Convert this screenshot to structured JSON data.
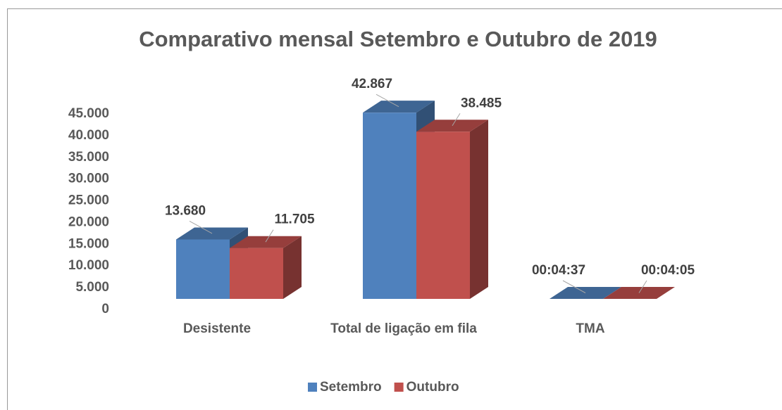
{
  "chart_data": {
    "type": "bar3d",
    "title": "Comparativo mensal Setembro e Outubro de 2019",
    "categories": [
      "Desistente",
      "Total de ligação em fila",
      "TMA"
    ],
    "series": [
      {
        "name": "Setembro",
        "color": "#4f81bd",
        "values": [
          13680,
          42867,
          0.003206
        ],
        "value_labels": [
          "13.680",
          "42.867",
          "00:04:37"
        ]
      },
      {
        "name": "Outubro",
        "color": "#c0504d",
        "values": [
          11705,
          38485,
          0.002836
        ],
        "value_labels": [
          "11.705",
          "38.485",
          "00:04:05"
        ]
      }
    ],
    "ylim": [
      0,
      45000
    ],
    "yticks": [
      0,
      {
        "value": 5000,
        "label": "5.000"
      },
      {
        "value": 10000,
        "label": "10.000"
      },
      {
        "value": 15000,
        "label": "15.000"
      },
      {
        "value": 20000,
        "label": "20.000"
      },
      {
        "value": 25000,
        "label": "25.000"
      },
      {
        "value": 30000,
        "label": "30.000"
      },
      {
        "value": 35000,
        "label": "35.000"
      },
      {
        "value": 40000,
        "label": "40.000"
      },
      {
        "value": 45000,
        "label": "45.000"
      }
    ],
    "grid": false,
    "legend": "bottom"
  }
}
